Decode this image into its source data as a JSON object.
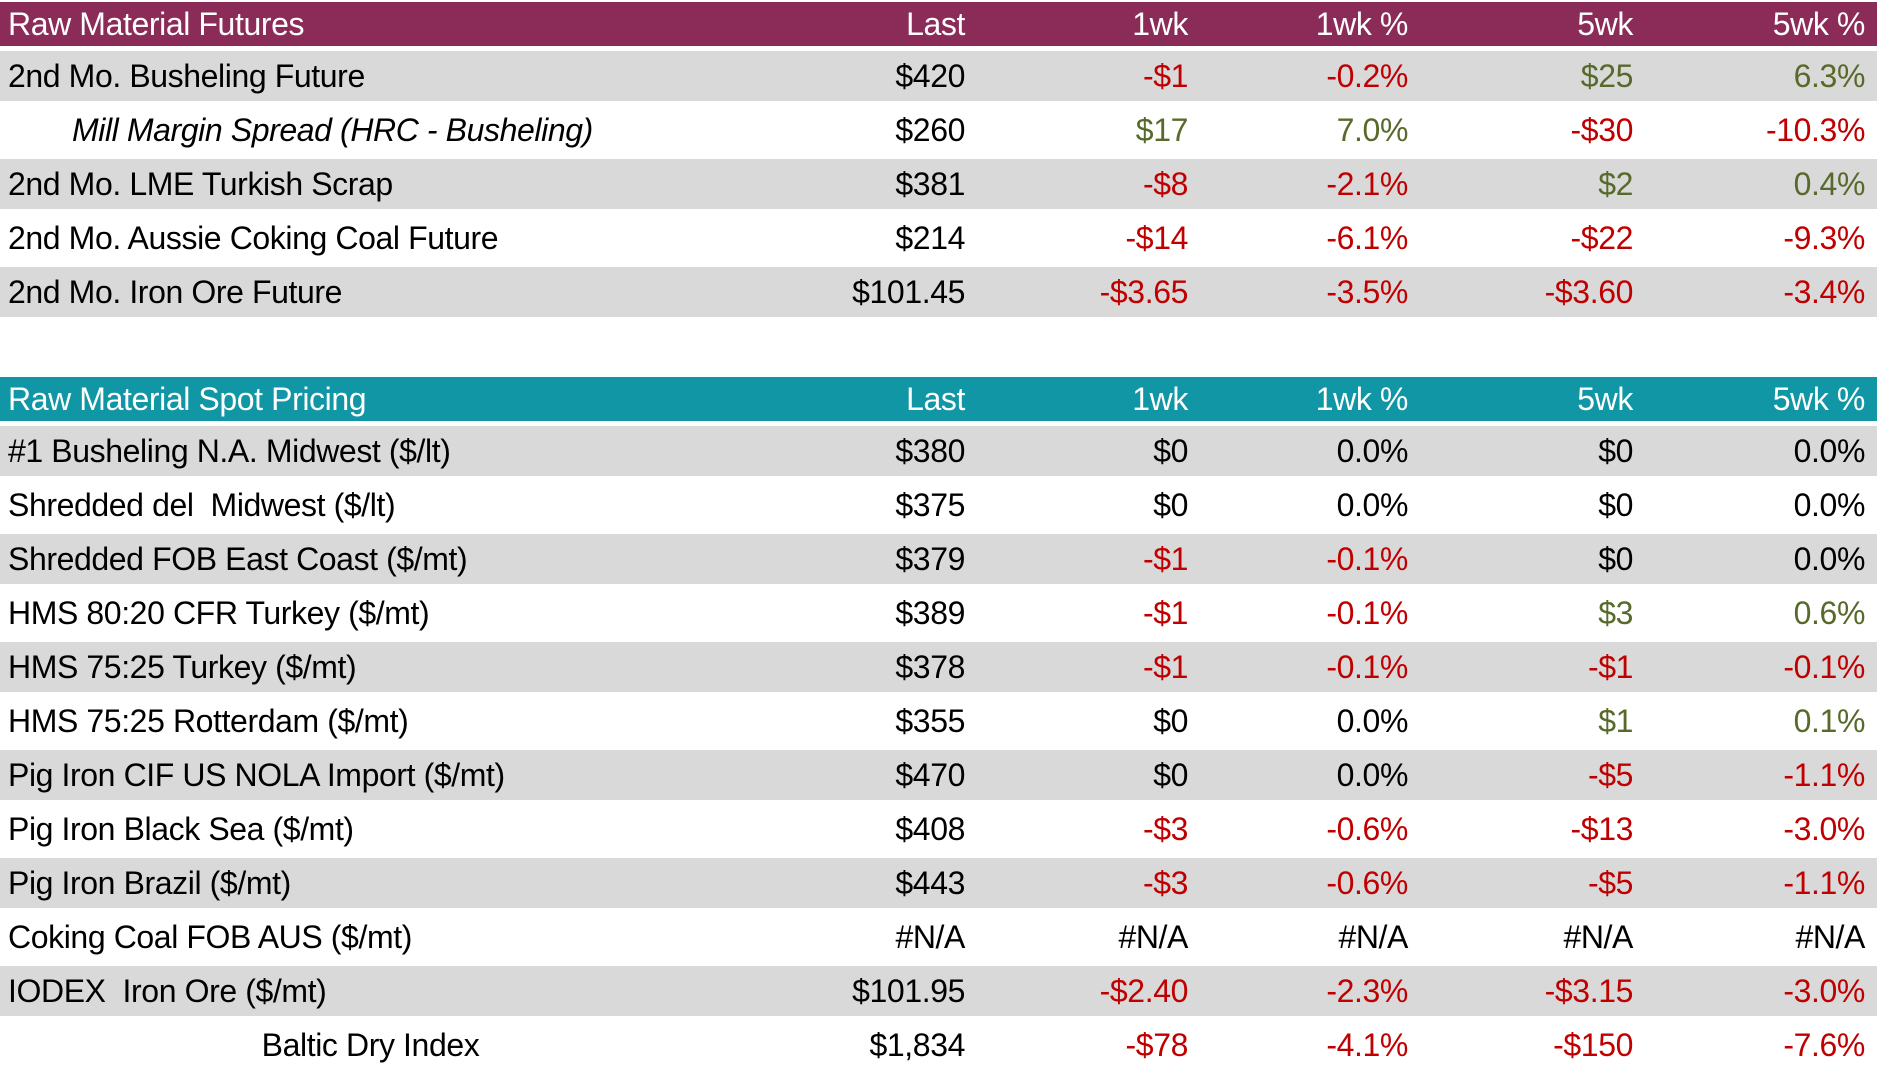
{
  "colors": {
    "futures_header": "#8B2B57",
    "spot_header": "#1096A4",
    "stripe": "#D9D9D9",
    "header_text": "#FFFFFF",
    "value_colors": {
      "k": "#000000",
      "r": "#C00000",
      "g": "#586A2B"
    }
  },
  "chart_data": [
    {
      "type": "table",
      "title": "Raw Material Futures",
      "header_bg": "#8B2B57",
      "columns": [
        "Last",
        "1wk",
        "1wk %",
        "5wk",
        "5wk %"
      ],
      "rows": [
        {
          "name": "2nd Mo. Busheling Future",
          "values": [
            "$420",
            "-$1",
            "-0.2%",
            "$25",
            "6.3%"
          ],
          "colors": [
            "k",
            "r",
            "r",
            "g",
            "g"
          ]
        },
        {
          "name": "Mill Margin Spread (HRC - Busheling)",
          "italic": true,
          "values": [
            "$260",
            "$17",
            "7.0%",
            "-$30",
            "-10.3%"
          ],
          "colors": [
            "k",
            "g",
            "g",
            "r",
            "r"
          ]
        },
        {
          "name": "2nd Mo. LME Turkish Scrap",
          "values": [
            "$381",
            "-$8",
            "-2.1%",
            "$2",
            "0.4%"
          ],
          "colors": [
            "k",
            "r",
            "r",
            "g",
            "g"
          ]
        },
        {
          "name": "2nd Mo. Aussie Coking Coal Future",
          "values": [
            "$214",
            "-$14",
            "-6.1%",
            "-$22",
            "-9.3%"
          ],
          "colors": [
            "k",
            "r",
            "r",
            "r",
            "r"
          ]
        },
        {
          "name": "2nd Mo. Iron Ore Future",
          "values": [
            "$101.45",
            "-$3.65",
            "-3.5%",
            "-$3.60",
            "-3.4%"
          ],
          "colors": [
            "k",
            "r",
            "r",
            "r",
            "r"
          ]
        }
      ]
    },
    {
      "type": "table",
      "title": "Raw Material Spot Pricing",
      "header_bg": "#1096A4",
      "columns": [
        "Last",
        "1wk",
        "1wk %",
        "5wk",
        "5wk %"
      ],
      "rows": [
        {
          "name": "#1 Busheling N.A. Midwest ($/lt)",
          "values": [
            "$380",
            "$0",
            "0.0%",
            "$0",
            "0.0%"
          ],
          "colors": [
            "k",
            "k",
            "k",
            "k",
            "k"
          ]
        },
        {
          "name": "Shredded del  Midwest ($/lt)",
          "values": [
            "$375",
            "$0",
            "0.0%",
            "$0",
            "0.0%"
          ],
          "colors": [
            "k",
            "k",
            "k",
            "k",
            "k"
          ]
        },
        {
          "name": "Shredded FOB East Coast ($/mt)",
          "values": [
            "$379",
            "-$1",
            "-0.1%",
            "$0",
            "0.0%"
          ],
          "colors": [
            "k",
            "r",
            "r",
            "k",
            "k"
          ]
        },
        {
          "name": "HMS 80:20 CFR Turkey ($/mt)",
          "values": [
            "$389",
            "-$1",
            "-0.1%",
            "$3",
            "0.6%"
          ],
          "colors": [
            "k",
            "r",
            "r",
            "g",
            "g"
          ]
        },
        {
          "name": "HMS 75:25 Turkey ($/mt)",
          "values": [
            "$378",
            "-$1",
            "-0.1%",
            "-$1",
            "-0.1%"
          ],
          "colors": [
            "k",
            "r",
            "r",
            "r",
            "r"
          ]
        },
        {
          "name": "HMS 75:25 Rotterdam ($/mt)",
          "values": [
            "$355",
            "$0",
            "0.0%",
            "$1",
            "0.1%"
          ],
          "colors": [
            "k",
            "k",
            "k",
            "g",
            "g"
          ]
        },
        {
          "name": "Pig Iron CIF US NOLA Import ($/mt)",
          "values": [
            "$470",
            "$0",
            "0.0%",
            "-$5",
            "-1.1%"
          ],
          "colors": [
            "k",
            "k",
            "k",
            "r",
            "r"
          ]
        },
        {
          "name": "Pig Iron Black Sea ($/mt)",
          "values": [
            "$408",
            "-$3",
            "-0.6%",
            "-$13",
            "-3.0%"
          ],
          "colors": [
            "k",
            "r",
            "r",
            "r",
            "r"
          ]
        },
        {
          "name": "Pig Iron Brazil ($/mt)",
          "values": [
            "$443",
            "-$3",
            "-0.6%",
            "-$5",
            "-1.1%"
          ],
          "colors": [
            "k",
            "r",
            "r",
            "r",
            "r"
          ]
        },
        {
          "name": "Coking Coal FOB AUS ($/mt)",
          "values": [
            "#N/A",
            "#N/A",
            "#N/A",
            "#N/A",
            "#N/A"
          ],
          "colors": [
            "k",
            "k",
            "k",
            "k",
            "k"
          ]
        },
        {
          "name": "IODEX  Iron Ore ($/mt)",
          "values": [
            "$101.95",
            "-$2.40",
            "-2.3%",
            "-$3.15",
            "-3.0%"
          ],
          "colors": [
            "k",
            "r",
            "r",
            "r",
            "r"
          ]
        },
        {
          "name": "Baltic Dry Index",
          "center": true,
          "values": [
            "$1,834",
            "-$78",
            "-4.1%",
            "-$150",
            "-7.6%"
          ],
          "colors": [
            "k",
            "r",
            "r",
            "r",
            "r"
          ]
        }
      ]
    }
  ]
}
